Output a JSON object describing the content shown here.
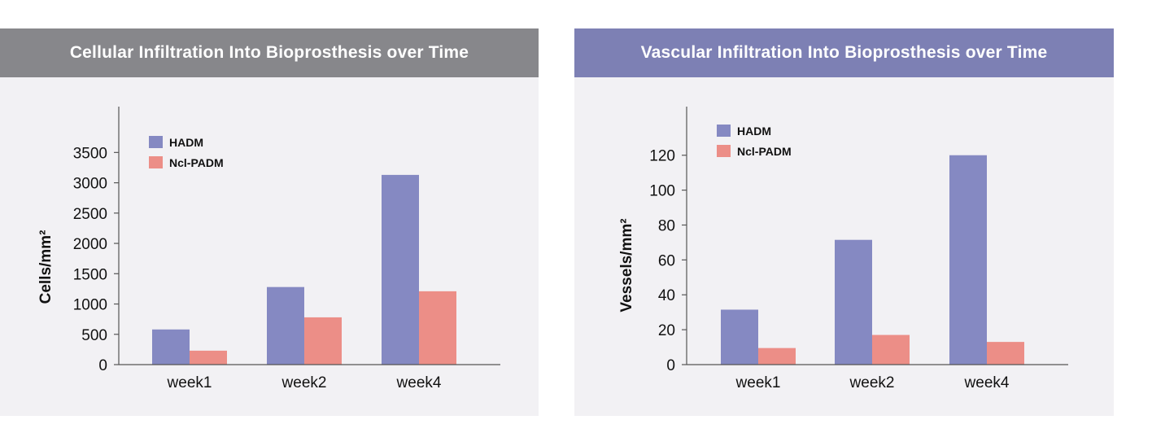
{
  "colors": {
    "left_header_bg": "#87878b",
    "right_header_bg": "#7d80b4",
    "panel_bg": "#f2f1f4",
    "hadm": "#8589c2",
    "ncl_padm": "#ec8e87"
  },
  "chart_data": [
    {
      "type": "bar",
      "title": "Cellular Infiltration Into Bioprosthesis over Time",
      "xlabel": "",
      "ylabel": "Cells/mm²",
      "categories": [
        "week1",
        "week2",
        "week4"
      ],
      "series": [
        {
          "name": "HADM",
          "values": [
            580,
            1280,
            3130
          ]
        },
        {
          "name": "Ncl-PADM",
          "values": [
            230,
            780,
            1210
          ]
        }
      ],
      "ylim": [
        0,
        3800
      ],
      "yticks": [
        0,
        500,
        1000,
        1500,
        2000,
        2500,
        3000,
        3500
      ],
      "legend": "top-left",
      "grid": false
    },
    {
      "type": "bar",
      "title": "Vascular Infiltration Into Bioprosthesis over Time",
      "xlabel": "",
      "ylabel": "Vessels/mm²",
      "categories": [
        "week1",
        "week2",
        "week4"
      ],
      "series": [
        {
          "name": "HADM",
          "values": [
            31.5,
            71.5,
            120
          ]
        },
        {
          "name": "Ncl-PADM",
          "values": [
            9.5,
            17,
            13
          ]
        }
      ],
      "ylim": [
        0,
        132
      ],
      "yticks": [
        0,
        20,
        40,
        60,
        80,
        100,
        120
      ],
      "legend": "top-left",
      "grid": false
    }
  ]
}
